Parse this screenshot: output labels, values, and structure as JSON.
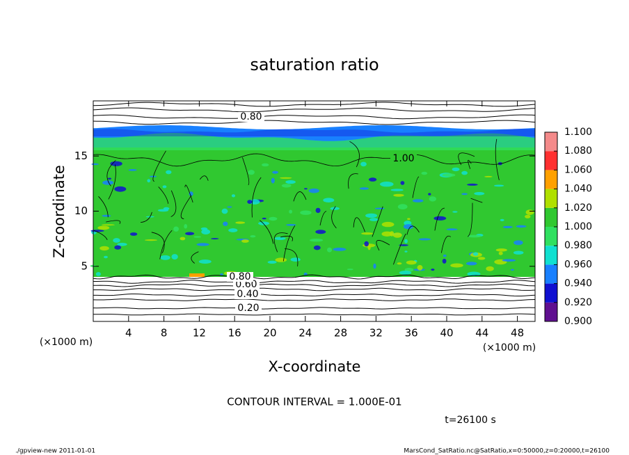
{
  "chart_data": {
    "type": "contour",
    "title": "saturation ratio",
    "x_label": "X-coordinate",
    "y_label": "Z-coordinate",
    "x_unit": "(×1000 m)",
    "y_unit": "(×1000 m)",
    "xlim": [
      0,
      50
    ],
    "ylim": [
      0,
      20
    ],
    "xticks": [
      4,
      8,
      12,
      16,
      20,
      24,
      28,
      32,
      36,
      40,
      44,
      48
    ],
    "yticks": [
      5,
      10,
      15
    ],
    "contour_labels": [
      {
        "value": 0.8,
        "label": "0.80"
      },
      {
        "value": 1.0,
        "label": "1.00"
      },
      {
        "value": 0.2,
        "label": "0.20"
      },
      {
        "value": 0.4,
        "label": "0.40"
      },
      {
        "value": 0.6,
        "label": "0.60"
      },
      {
        "value": 0.8,
        "label": "0.80"
      }
    ],
    "contour_interval": "CONTOUR INTERVAL = 1.000E-01",
    "time_label": "t=26100 s",
    "footer_left": "./gpview-new  2011-01-01",
    "footer_right": "MarsCond_SatRatio.nc@SatRatio,x=0:50000,z=0:20000,t=26100",
    "colorbar": {
      "lim": [
        0.9,
        1.1
      ],
      "ticks": [
        {
          "value": 0.9,
          "label": "0.900"
        },
        {
          "value": 0.92,
          "label": "0.920"
        },
        {
          "value": 0.94,
          "label": "0.940"
        },
        {
          "value": 0.96,
          "label": "0.960"
        },
        {
          "value": 0.98,
          "label": "0.980"
        },
        {
          "value": 1.0,
          "label": "1.000"
        },
        {
          "value": 1.02,
          "label": "1.020"
        },
        {
          "value": 1.04,
          "label": "1.040"
        },
        {
          "value": 1.06,
          "label": "1.060"
        },
        {
          "value": 1.08,
          "label": "1.080"
        },
        {
          "value": 1.1,
          "label": "1.100"
        }
      ],
      "colors": [
        "#601090",
        "#1010d0",
        "#1880ff",
        "#10e0d0",
        "#30e060",
        "#30c830",
        "#b0e000",
        "#ffa000",
        "#ff3030",
        "#f48a8a"
      ]
    }
  }
}
